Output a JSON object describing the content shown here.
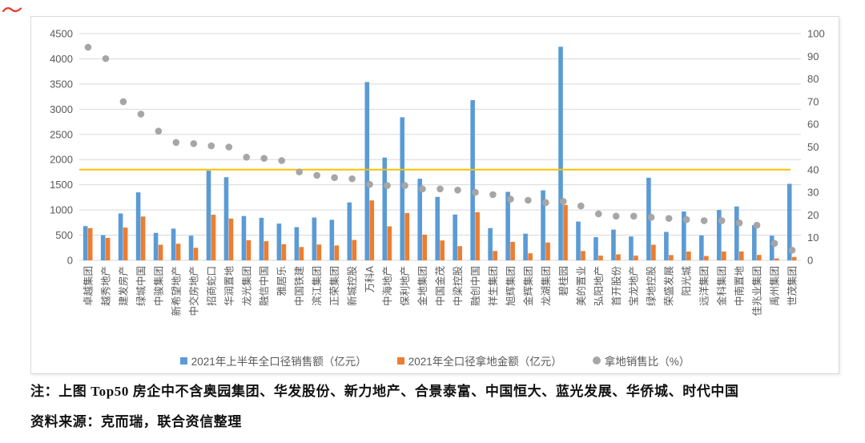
{
  "annotation": {
    "red_mark_color": "#e8392b"
  },
  "chart_data": {
    "type": "combo-bar-scatter",
    "categories": [
      "卓越集团",
      "越秀地产",
      "建发房产",
      "绿城中国",
      "中骏集团",
      "新希望地产",
      "中交房地产",
      "招商蛇口",
      "华润置地",
      "龙光集团",
      "融信中国",
      "雅居乐",
      "中国铁建",
      "滨江集团",
      "正荣集团",
      "新城控股",
      "万科A",
      "中海地产",
      "保利地产",
      "金地集团",
      "中国金茂",
      "中梁控股",
      "融创中国",
      "祥生集团",
      "旭辉集团",
      "金辉集团",
      "龙湖集团",
      "碧桂园",
      "美的置业",
      "弘阳地产",
      "首开股份",
      "宝龙地产",
      "绿地控股",
      "荣盛发展",
      "阳光城",
      "远洋集团",
      "金科集团",
      "中南置地",
      "佳兆业集团",
      "禹州集团",
      "世茂集团"
    ],
    "series": [
      {
        "name": "2021年上半年全口径销售额（亿元）",
        "type": "bar",
        "axis": "left",
        "color": "#5b9bd5",
        "values": [
          680,
          500,
          930,
          1350,
          545,
          630,
          490,
          1780,
          1650,
          880,
          845,
          730,
          660,
          850,
          805,
          1150,
          3540,
          2040,
          2840,
          1620,
          1260,
          910,
          3180,
          640,
          1360,
          530,
          1390,
          4240,
          770,
          460,
          610,
          475,
          1640,
          565,
          970,
          495,
          1000,
          1070,
          700,
          490,
          1520
        ]
      },
      {
        "name": "2021年全口径拿地金额（亿元）",
        "type": "bar",
        "axis": "left",
        "color": "#ed7d31",
        "values": [
          640,
          445,
          650,
          870,
          310,
          330,
          250,
          905,
          830,
          400,
          380,
          320,
          265,
          315,
          295,
          405,
          1190,
          675,
          940,
          510,
          395,
          282,
          955,
          186,
          367,
          140,
          354,
          1100,
          185,
          94,
          119,
          93,
          310,
          105,
          175,
          87,
          175,
          177,
          108,
          37,
          68
        ]
      },
      {
        "name": "拿地销售比（%）",
        "type": "scatter",
        "axis": "right",
        "color": "#a6a6a6",
        "values": [
          94,
          89,
          70,
          64.5,
          57,
          52,
          51.5,
          50.5,
          50,
          45.5,
          45,
          44,
          39,
          37.5,
          36.5,
          36,
          33.5,
          33,
          33,
          31.5,
          31.5,
          31,
          30,
          29,
          27,
          26.5,
          25.5,
          26,
          24,
          20.5,
          19.5,
          19.5,
          19,
          18.5,
          18,
          17.5,
          17.5,
          16.5,
          15.5,
          7.5,
          4.5
        ]
      }
    ],
    "left_axis": {
      "min": 0,
      "max": 4500,
      "ticks": [
        0,
        500,
        1000,
        1500,
        2000,
        2500,
        3000,
        3500,
        4000,
        4500
      ]
    },
    "right_axis": {
      "min": 0,
      "max": 100,
      "ticks": [
        0,
        10,
        20,
        30,
        40,
        50,
        60,
        70,
        80,
        90,
        100
      ]
    },
    "reference_line": {
      "value": 40,
      "axis": "right",
      "color": "#ffc000"
    },
    "grid": true,
    "grid_color": "#d9d9d9",
    "legend_position": "bottom"
  },
  "notes": {
    "line1": "注：上图 Top50 房企中不含奥园集团、华发股份、新力地产、合景泰富、中国恒大、蓝光发展、华侨城、时代中国",
    "line2": "资料来源：克而瑞，联合资信整理"
  }
}
